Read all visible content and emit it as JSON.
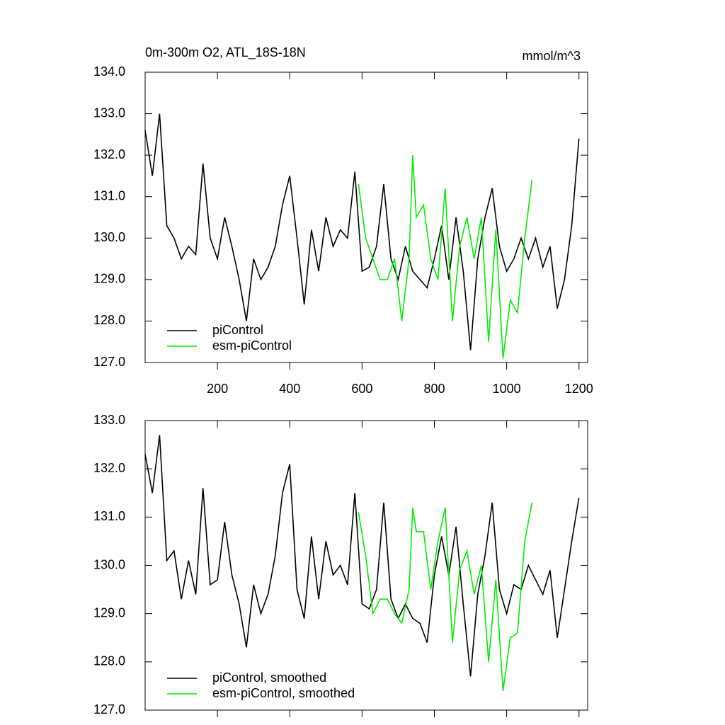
{
  "chart_data": [
    {
      "type": "line",
      "title": "0m-300m O2, ATL_18S-18N",
      "units": "mmol/m^3",
      "xlim": [
        0,
        1224
      ],
      "ylim": [
        127,
        134
      ],
      "xticks": [
        200,
        400,
        600,
        800,
        1000,
        1200
      ],
      "xticklabels": true,
      "yticks": [
        {
          "value": 127,
          "label": "127.0"
        },
        {
          "value": 128,
          "label": "128.0"
        },
        {
          "value": 129,
          "label": "129.0"
        },
        {
          "value": 130,
          "label": "130.0"
        },
        {
          "value": 131,
          "label": "131.0"
        },
        {
          "value": 132,
          "label": "132.0"
        },
        {
          "value": 133,
          "label": "133.0"
        },
        {
          "value": 134,
          "label": "134.0"
        }
      ],
      "legend": "lower left",
      "series": [
        {
          "name": "piControl",
          "color": "#000000",
          "x": [
            0,
            20,
            40,
            60,
            80,
            100,
            120,
            140,
            160,
            180,
            200,
            220,
            240,
            260,
            280,
            300,
            320,
            340,
            360,
            380,
            400,
            420,
            440,
            460,
            480,
            500,
            520,
            540,
            560,
            580,
            600,
            620,
            640,
            660,
            680,
            700,
            720,
            740,
            760,
            780,
            800,
            820,
            840,
            860,
            880,
            900,
            920,
            940,
            960,
            980,
            1000,
            1020,
            1040,
            1060,
            1080,
            1100,
            1120,
            1140,
            1160,
            1180,
            1200
          ],
          "values": [
            132.6,
            131.5,
            133.0,
            130.3,
            130.0,
            129.5,
            129.8,
            129.6,
            131.8,
            130.0,
            129.5,
            130.5,
            129.8,
            129.0,
            128.0,
            129.5,
            129.0,
            129.3,
            129.8,
            130.8,
            131.5,
            130.0,
            128.4,
            130.2,
            129.2,
            130.5,
            129.8,
            130.2,
            130.0,
            131.6,
            129.2,
            129.3,
            129.8,
            131.3,
            129.5,
            129.0,
            129.8,
            129.2,
            129.0,
            128.8,
            129.5,
            130.3,
            129.0,
            130.5,
            129.2,
            127.3,
            129.5,
            130.5,
            131.2,
            129.8,
            129.2,
            129.5,
            130.0,
            129.5,
            130.0,
            129.3,
            129.8,
            128.3,
            129.0,
            130.3,
            132.4
          ]
        },
        {
          "name": "esm-piControl",
          "color": "#00ee00",
          "x": [
            590,
            610,
            630,
            650,
            670,
            690,
            710,
            730,
            740,
            750,
            770,
            790,
            810,
            830,
            850,
            870,
            890,
            910,
            930,
            950,
            970,
            990,
            1010,
            1030,
            1050,
            1070
          ],
          "values": [
            131.3,
            130.0,
            129.5,
            129.0,
            129.0,
            129.5,
            128.0,
            129.5,
            132.0,
            130.5,
            130.8,
            129.5,
            129.0,
            131.2,
            128.0,
            129.8,
            130.5,
            129.5,
            130.5,
            127.5,
            130.2,
            127.1,
            128.5,
            128.2,
            130.0,
            131.4
          ]
        }
      ]
    },
    {
      "type": "line",
      "xlim": [
        0,
        1224
      ],
      "ylim": [
        127,
        133
      ],
      "xticks": [
        200,
        400,
        600,
        800,
        1000,
        1200
      ],
      "xticklabels": false,
      "yticks": [
        {
          "value": 127,
          "label": "127.0"
        },
        {
          "value": 128,
          "label": "128.0"
        },
        {
          "value": 129,
          "label": "129.0"
        },
        {
          "value": 130,
          "label": "130.0"
        },
        {
          "value": 131,
          "label": "131.0"
        },
        {
          "value": 132,
          "label": "132.0"
        },
        {
          "value": 133,
          "label": "133.0"
        }
      ],
      "legend": "lower left",
      "series": [
        {
          "name": "piControl, smoothed",
          "color": "#000000",
          "x": [
            0,
            20,
            40,
            60,
            80,
            100,
            120,
            140,
            160,
            180,
            200,
            220,
            240,
            260,
            280,
            300,
            320,
            340,
            360,
            380,
            400,
            420,
            440,
            460,
            480,
            500,
            520,
            540,
            560,
            580,
            600,
            620,
            640,
            660,
            680,
            700,
            720,
            740,
            760,
            780,
            800,
            820,
            840,
            860,
            880,
            900,
            920,
            940,
            960,
            980,
            1000,
            1020,
            1040,
            1060,
            1080,
            1100,
            1120,
            1140,
            1160,
            1180,
            1200
          ],
          "values": [
            132.3,
            131.5,
            132.7,
            130.1,
            130.3,
            129.3,
            130.1,
            129.4,
            131.6,
            129.6,
            129.7,
            130.9,
            129.8,
            129.2,
            128.3,
            129.6,
            129.0,
            129.4,
            130.2,
            131.5,
            132.1,
            129.5,
            128.9,
            130.6,
            129.3,
            130.5,
            129.8,
            130.0,
            129.6,
            131.5,
            129.2,
            129.1,
            129.5,
            131.3,
            129.3,
            128.9,
            129.2,
            128.9,
            128.8,
            128.4,
            129.8,
            130.6,
            129.8,
            130.8,
            129.2,
            127.7,
            129.4,
            130.2,
            131.3,
            129.5,
            129.0,
            129.6,
            129.5,
            130.0,
            129.7,
            129.4,
            129.9,
            128.5,
            129.5,
            130.5,
            131.4
          ]
        },
        {
          "name": "esm-piControl, smoothed",
          "color": "#00ee00",
          "x": [
            590,
            610,
            630,
            650,
            670,
            690,
            710,
            730,
            740,
            750,
            770,
            790,
            810,
            830,
            850,
            870,
            890,
            910,
            930,
            950,
            970,
            990,
            1010,
            1030,
            1050,
            1070
          ],
          "values": [
            131.1,
            130.2,
            129.0,
            129.3,
            129.3,
            129.0,
            128.8,
            129.5,
            131.2,
            130.7,
            130.7,
            129.5,
            130.5,
            131.2,
            128.4,
            129.9,
            130.3,
            129.4,
            130.0,
            128.0,
            129.7,
            127.4,
            128.5,
            128.6,
            130.5,
            131.3
          ]
        }
      ]
    }
  ]
}
